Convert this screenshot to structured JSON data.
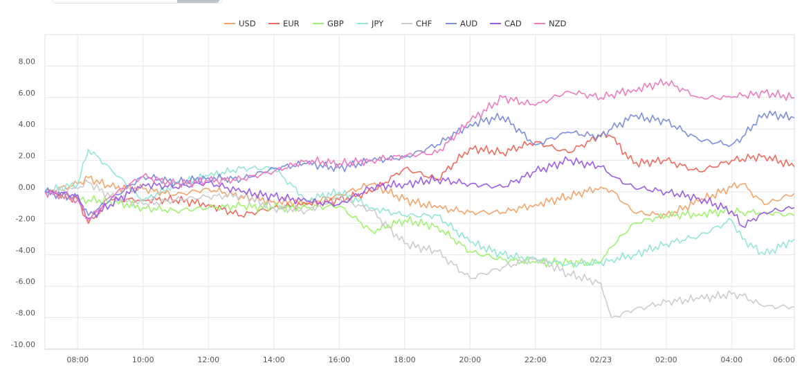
{
  "chart_data": {
    "type": "line",
    "title": "",
    "xlabel": "",
    "ylabel": "",
    "x_unit": "hours elapsed since 07:00",
    "xlim": [
      0,
      22.92
    ],
    "ylim": [
      -10,
      10
    ],
    "grid": true,
    "legend_position": "top-center",
    "yticks": [
      8,
      6,
      4,
      2,
      0,
      -2,
      -4,
      -6,
      -8,
      -10
    ],
    "ytick_labels": [
      "8.00",
      "6.00",
      "4.00",
      "2.00",
      "0.00",
      "-2.00",
      "-4.00",
      "-6.00",
      "-8.00",
      "-10.00"
    ],
    "xticks": [
      1,
      3,
      5,
      7,
      9,
      11,
      13,
      15,
      17,
      19,
      21,
      23
    ],
    "xtick_labels": [
      "08:00",
      "10:00",
      "12:00",
      "14:00",
      "16:00",
      "18:00",
      "20:00",
      "22:00",
      "02/23",
      "02:00",
      "04:00",
      "06:00"
    ],
    "x": [
      0,
      1,
      1.33,
      2,
      3,
      4,
      5,
      6,
      7,
      8,
      9,
      10,
      11,
      12,
      13,
      14,
      15,
      16,
      17,
      17.33,
      18,
      19,
      20,
      21,
      21.33,
      22,
      22.92
    ],
    "series": [
      {
        "name": "USD",
        "color": "#f4a46b",
        "values": [
          0,
          0.5,
          0.9,
          0.3,
          0.2,
          -0.2,
          0.2,
          -0.3,
          -0.6,
          -0.7,
          -0.2,
          0.5,
          -0.5,
          -1.0,
          -1.3,
          -1.3,
          -0.8,
          -0.3,
          0.3,
          0.1,
          -1.3,
          -1.5,
          -0.6,
          0.3,
          0.5,
          -0.8,
          -0.1
        ]
      },
      {
        "name": "EUR",
        "color": "#ef6b5d",
        "values": [
          0,
          -0.5,
          -2.0,
          -0.5,
          -0.5,
          -0.5,
          -0.8,
          -1.5,
          -1.0,
          -0.8,
          -0.5,
          0,
          1.5,
          0.8,
          2.8,
          2.5,
          3.2,
          2.5,
          3.6,
          3.5,
          1.8,
          2.0,
          1.3,
          2.0,
          2.1,
          2.3,
          1.6
        ]
      },
      {
        "name": "GBP",
        "color": "#9ef36e",
        "values": [
          0,
          -0.5,
          -0.5,
          -0.6,
          -1.0,
          -1.2,
          -1.0,
          -0.9,
          -1.0,
          -1.0,
          -0.9,
          -2.5,
          -1.8,
          -2.2,
          -3.8,
          -4.3,
          -4.5,
          -4.5,
          -4.5,
          -3.5,
          -2.0,
          -1.5,
          -1.4,
          -1.2,
          -1.3,
          -1.3,
          -1.5
        ]
      },
      {
        "name": "JPY",
        "color": "#93e6d6",
        "values": [
          0,
          0.5,
          2.7,
          1.5,
          -0.6,
          0.5,
          1.0,
          1.5,
          1.5,
          -0.5,
          0,
          -1.0,
          -1.5,
          -1.5,
          -3.2,
          -4.0,
          -4.3,
          -4.6,
          -4.5,
          -4.3,
          -4.0,
          -3.3,
          -2.8,
          -1.8,
          -3.0,
          -4.0,
          -3.0
        ]
      },
      {
        "name": "CHF",
        "color": "#cccccc",
        "values": [
          0,
          0.2,
          0.6,
          -0.3,
          -0.8,
          -0.5,
          -0.3,
          -0.2,
          -1.0,
          -1.2,
          -0.4,
          -1.2,
          -3.3,
          -3.8,
          -5.5,
          -4.8,
          -4.2,
          -5.2,
          -5.8,
          -8.0,
          -7.5,
          -7.0,
          -6.8,
          -6.5,
          -6.6,
          -7.3,
          -7.3
        ]
      },
      {
        "name": "AUD",
        "color": "#7b8ee0",
        "values": [
          0,
          -0.4,
          -1.5,
          -0.5,
          1.0,
          0.6,
          0.9,
          0.8,
          1.5,
          1.8,
          1.5,
          2.0,
          2.2,
          3.0,
          4.3,
          4.8,
          3.0,
          3.8,
          3.5,
          4.0,
          4.8,
          4.5,
          3.3,
          3.0,
          3.5,
          5.0,
          4.7
        ]
      },
      {
        "name": "CAD",
        "color": "#9b5de5",
        "values": [
          0,
          -0.2,
          -1.7,
          -0.8,
          0.5,
          0.3,
          0.6,
          0,
          -0.3,
          -0.6,
          -0.8,
          0.3,
          0.5,
          0.8,
          0.5,
          0.3,
          1.3,
          2.0,
          1.6,
          1.0,
          0.3,
          0,
          -0.4,
          -1.2,
          -2.2,
          -1.3,
          -1.0
        ]
      },
      {
        "name": "NZD",
        "color": "#ef7bbf",
        "values": [
          0,
          -0.5,
          -1.8,
          -0.3,
          1.0,
          0.5,
          0.7,
          0.8,
          1.3,
          2.0,
          1.8,
          2.0,
          2.3,
          2.5,
          4.5,
          6.0,
          5.5,
          6.4,
          6.0,
          6.2,
          6.5,
          7.0,
          6.0,
          6.0,
          6.1,
          6.3,
          6.0
        ]
      }
    ]
  }
}
